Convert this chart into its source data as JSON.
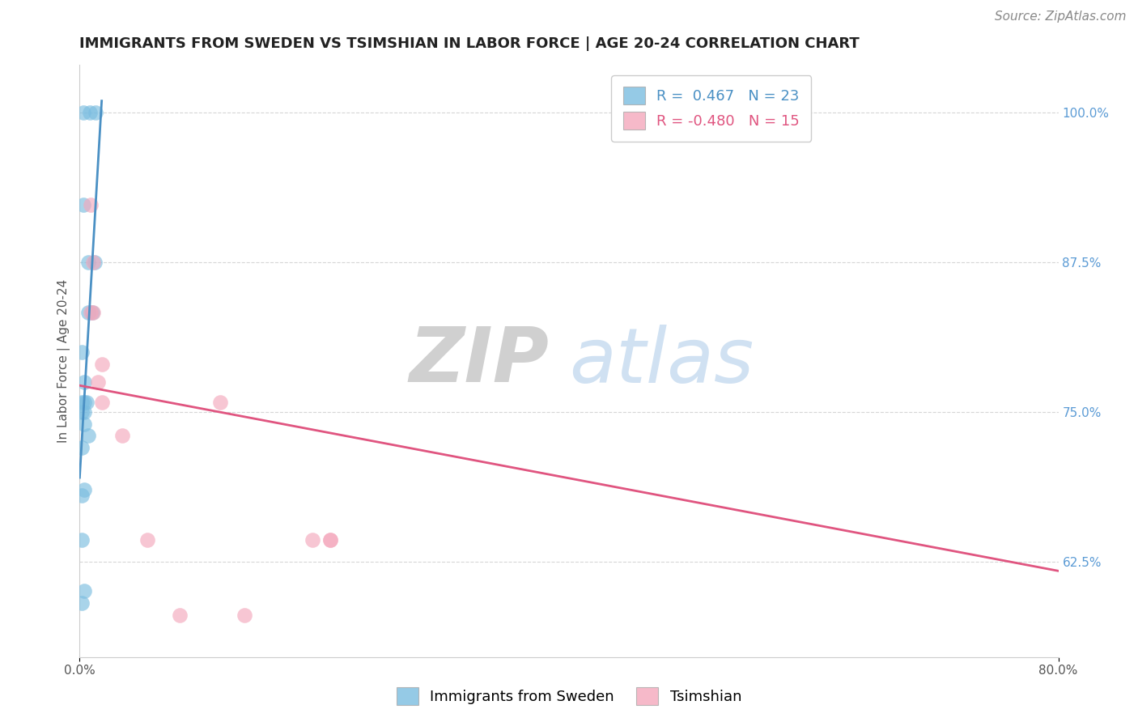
{
  "title": "IMMIGRANTS FROM SWEDEN VS TSIMSHIAN IN LABOR FORCE | AGE 20-24 CORRELATION CHART",
  "source_text": "Source: ZipAtlas.com",
  "ylabel": "In Labor Force | Age 20-24",
  "xlim": [
    0.0,
    0.8
  ],
  "ylim": [
    0.545,
    1.04
  ],
  "yticks": [
    0.625,
    0.75,
    0.875,
    1.0
  ],
  "ytick_labels": [
    "62.5%",
    "75.0%",
    "87.5%",
    "100.0%"
  ],
  "xticks": [
    0.0,
    0.8
  ],
  "xtick_labels": [
    "0.0%",
    "80.0%"
  ],
  "blue_scatter_x": [
    0.003,
    0.008,
    0.013,
    0.003,
    0.007,
    0.012,
    0.007,
    0.01,
    0.002,
    0.004,
    0.002,
    0.004,
    0.004,
    0.006,
    0.002,
    0.004,
    0.007,
    0.002,
    0.004,
    0.002,
    0.002,
    0.004,
    0.002
  ],
  "blue_scatter_y": [
    1.0,
    1.0,
    1.0,
    0.923,
    0.875,
    0.875,
    0.833,
    0.833,
    0.8,
    0.775,
    0.758,
    0.758,
    0.75,
    0.758,
    0.75,
    0.74,
    0.73,
    0.72,
    0.685,
    0.68,
    0.643,
    0.6,
    0.59
  ],
  "pink_scatter_x": [
    0.009,
    0.011,
    0.009,
    0.011,
    0.018,
    0.015,
    0.018,
    0.035,
    0.055,
    0.19,
    0.205,
    0.205,
    0.115,
    0.135,
    0.082
  ],
  "pink_scatter_y": [
    0.923,
    0.875,
    0.833,
    0.833,
    0.79,
    0.775,
    0.758,
    0.73,
    0.643,
    0.643,
    0.643,
    0.643,
    0.758,
    0.58,
    0.58
  ],
  "blue_line_x": [
    0.0,
    0.018
  ],
  "blue_line_y": [
    0.695,
    1.01
  ],
  "pink_line_x": [
    0.0,
    0.8
  ],
  "pink_line_y": [
    0.772,
    0.617
  ],
  "blue_R": "0.467",
  "blue_N": "23",
  "pink_R": "-0.480",
  "pink_N": "15",
  "blue_color": "#7bbde0",
  "pink_color": "#f4a8bc",
  "blue_line_color": "#4a90c4",
  "pink_line_color": "#e05580",
  "title_fontsize": 13,
  "axis_label_fontsize": 11,
  "tick_fontsize": 11,
  "legend_fontsize": 13,
  "source_fontsize": 11,
  "background_color": "#ffffff",
  "grid_color": "#cccccc"
}
